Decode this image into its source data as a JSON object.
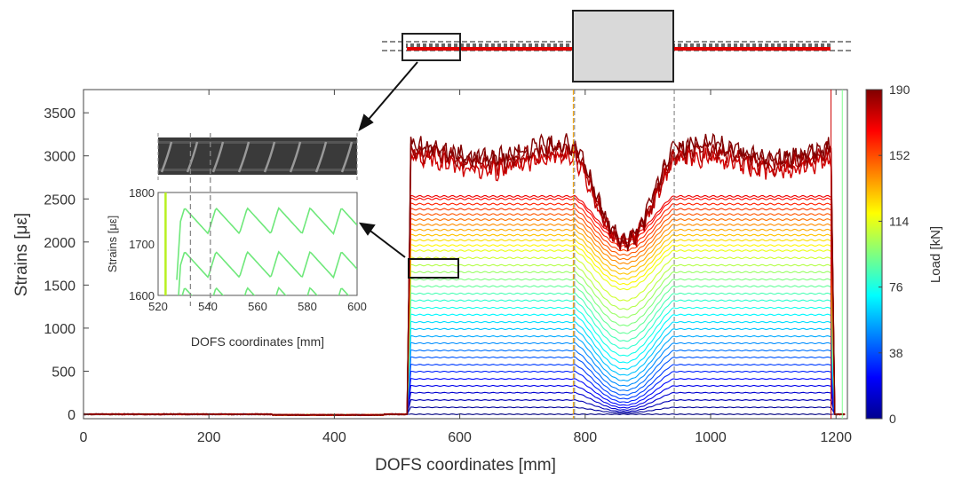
{
  "chart_data": {
    "type": "line",
    "xlabel": "DOFS coordinates [mm]",
    "ylabel": "Strains [με]",
    "xlim": [
      0,
      1220
    ],
    "ylim": [
      -50,
      3770
    ],
    "xticks": [
      "0",
      "200",
      "400",
      "600",
      "800",
      "1000",
      "1200"
    ],
    "xtick_values": [
      0,
      200,
      400,
      600,
      800,
      1000,
      1200
    ],
    "yticks": [
      "0",
      "500",
      "1000",
      "1500",
      "2000",
      "2500",
      "3000",
      "3500"
    ],
    "ytick_values": [
      0,
      500,
      1000,
      1500,
      2000,
      2500,
      3000,
      3500
    ],
    "grid": false,
    "bonded_region_mm": [
      522,
      1192
    ],
    "loaded_region_mm": [
      783,
      942
    ],
    "colorbar": {
      "label": "Load [kN]",
      "range": [
        0,
        190
      ],
      "ticks": [
        "0",
        "38",
        "76",
        "114",
        "152",
        "190"
      ],
      "tick_values": [
        0,
        38,
        76,
        114,
        152,
        190
      ],
      "colormap": "jet"
    },
    "series": {
      "loads_kN": [
        0,
        5,
        10,
        15,
        20,
        25,
        30,
        35,
        40,
        45,
        50,
        55,
        60,
        65,
        70,
        75,
        80,
        85,
        90,
        95,
        100,
        105,
        110,
        115,
        120,
        125,
        130,
        135,
        140,
        145,
        150,
        155,
        160,
        165,
        170,
        175,
        180,
        185,
        190
      ],
      "plateau_strain": [
        0,
        80,
        165,
        250,
        330,
        410,
        495,
        575,
        660,
        740,
        825,
        905,
        990,
        1070,
        1155,
        1235,
        1320,
        1400,
        1485,
        1565,
        1650,
        1730,
        1815,
        1900,
        1960,
        2020,
        2080,
        2140,
        2200,
        2260,
        2320,
        2380,
        2440,
        2500,
        2530,
        2900,
        2960,
        3010,
        3060
      ],
      "center_strain": [
        0,
        15,
        30,
        50,
        75,
        105,
        140,
        180,
        225,
        275,
        330,
        390,
        455,
        525,
        600,
        680,
        765,
        850,
        940,
        1030,
        1125,
        1220,
        1320,
        1450,
        1510,
        1570,
        1630,
        1690,
        1750,
        1800,
        1850,
        1900,
        1950,
        2000,
        2040,
        2060,
        2080,
        2090,
        2100
      ]
    },
    "inset": {
      "xlabel": "DOFS coordinates [mm]",
      "ylabel": "Strains [με]",
      "xlim": [
        520,
        600
      ],
      "ylim": [
        1575,
        1800
      ],
      "xticks": [
        "520",
        "540",
        "560",
        "580",
        "600"
      ],
      "xtick_values": [
        520,
        540,
        560,
        580,
        600
      ],
      "yticks": [
        "1600",
        "1700",
        "1800"
      ],
      "ytick_values": [
        1600,
        1700,
        1800
      ],
      "rib_lines_mm": [
        533,
        541
      ],
      "curve_levels": [
        1745,
        1660,
        1590
      ]
    }
  }
}
